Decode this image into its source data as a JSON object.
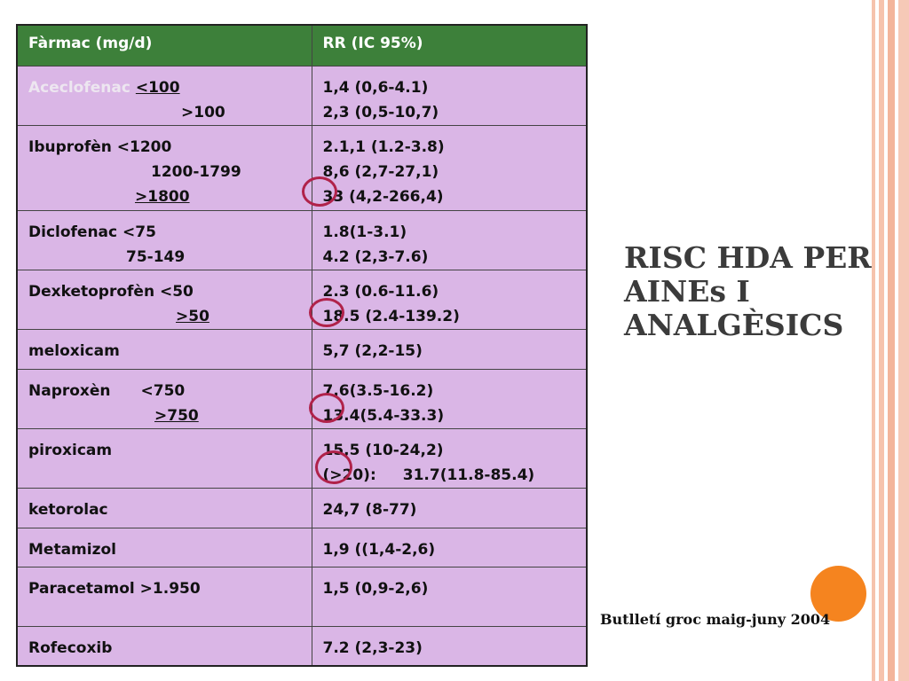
{
  "slide": {
    "title_lines": [
      "RISC HDA PER",
      "AINEs I",
      "ANALGÈSICS"
    ],
    "source": "Butlletí groc  maig-juny 2004"
  },
  "table": {
    "headers": [
      "Fàrmac (mg/d)",
      "RR (IC 95%)"
    ],
    "rows": [
      {
        "drug": "Aceclofenac",
        "drug_lines": [
          "<100",
          ">100"
        ],
        "rr": [
          "1,4 (0,6-4.1)",
          "2,3 (0,5-10,7)"
        ]
      },
      {
        "drug": "Ibuprofèn <1200",
        "drug_lines": [
          "1200-1799",
          ">1800"
        ],
        "rr": [
          "2.1,1 (1.2-3.8)",
          "8,6 (2,7-27,1)",
          "33 (4,2-266,4)"
        ]
      },
      {
        "drug": "Diclofenac <75",
        "drug_lines": [
          "75-149"
        ],
        "rr": [
          "1.8(1-3.1)",
          "4.2 (2,3-7.6)"
        ]
      },
      {
        "drug": "Dexketoprofèn <50",
        "drug_lines": [
          ">50"
        ],
        "rr": [
          "2.3 (0.6-11.6)",
          "18.5 (2.4-139.2)"
        ]
      },
      {
        "drug": "meloxicam",
        "drug_lines": [],
        "rr": [
          "5,7 (2,2-15)"
        ]
      },
      {
        "drug": "Naproxèn",
        "drug_lines": [
          "<750",
          ">750"
        ],
        "rr": [
          "7.6(3.5-16.2)",
          "13.4(5.4-33.3)"
        ]
      },
      {
        "drug": "piroxicam",
        "drug_lines": [],
        "rr": [
          "15,5 (10-24,2)",
          "(>20):",
          "31.7(11.8-85.4)"
        ]
      },
      {
        "drug": "ketorolac",
        "drug_lines": [],
        "rr": [
          "24,7 (8-77)"
        ]
      },
      {
        "drug": "Metamizol",
        "drug_lines": [],
        "rr": [
          "1,9 ((1,4-2,6)"
        ]
      },
      {
        "drug": "Paracetamol >1.950",
        "drug_lines": [],
        "rr": [
          "1,5 (0,9-2,6)"
        ]
      },
      {
        "drug": "Rofecoxib",
        "drug_lines": [],
        "rr": [
          "7.2   (2,3-23)"
        ]
      }
    ]
  },
  "colors": {
    "header_bg": "#3d803a",
    "cell_bg": "#dab6e6",
    "circle": "#b0224a",
    "accent_dot": "#f5841f"
  }
}
